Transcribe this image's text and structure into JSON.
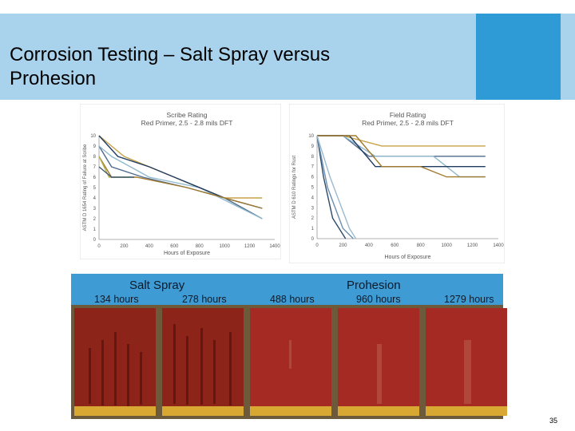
{
  "slide": {
    "title_line1": "Corrosion Testing – Salt Spray versus",
    "title_line2": "Prohesion",
    "page_number": "35",
    "colors": {
      "header_light": "#a9d2ec",
      "header_dark": "#2e9bd6",
      "strip": "#3f9bd4"
    }
  },
  "strip": {
    "salt_spray_label": "Salt Spray",
    "prohesion_label": "Prohesion",
    "hours": [
      "134 hours",
      "278 hours",
      "488 hours",
      "960 hours",
      "1279 hours"
    ]
  },
  "photos": [
    {
      "condition": "heavy-rust"
    },
    {
      "condition": "heavy-rust"
    },
    {
      "condition": "clean"
    },
    {
      "condition": "scribe"
    },
    {
      "condition": "scribe"
    }
  ],
  "chart_data": [
    {
      "type": "line",
      "title": "Scribe Rating",
      "subtitle": "Red Primer, 2.5 - 2.8 mils DFT",
      "xlabel": "Hours of Exposure",
      "ylabel": "ASTM D 1654 Rating of Failure at Scribe",
      "xlim": [
        0,
        1400
      ],
      "ylim": [
        0,
        10
      ],
      "xticks": [
        0,
        200,
        400,
        600,
        800,
        1000,
        1200,
        1400
      ],
      "yticks": [
        0,
        1,
        2,
        3,
        4,
        5,
        6,
        7,
        8,
        9,
        10
      ],
      "series": [
        {
          "color": "#c8a247",
          "points": [
            [
              0,
              10
            ],
            [
              200,
              8
            ],
            [
              600,
              6
            ],
            [
              1000,
              4
            ],
            [
              1300,
              4
            ]
          ]
        },
        {
          "color": "#4f6a8c",
          "points": [
            [
              0,
              9
            ],
            [
              100,
              7
            ],
            [
              350,
              6
            ],
            [
              700,
              5
            ],
            [
              1000,
              4
            ],
            [
              1300,
              2
            ]
          ]
        },
        {
          "color": "#8fb8cf",
          "points": [
            [
              0,
              9
            ],
            [
              100,
              8
            ],
            [
              400,
              6
            ],
            [
              800,
              5
            ],
            [
              1300,
              2
            ]
          ]
        },
        {
          "color": "#1f3b60",
          "points": [
            [
              0,
              10
            ],
            [
              150,
              8
            ],
            [
              400,
              7
            ],
            [
              600,
              6
            ],
            [
              1000,
              4
            ],
            [
              1300,
              3
            ]
          ]
        },
        {
          "color": "#a07a2e",
          "points": [
            [
              0,
              8
            ],
            [
              100,
              6
            ],
            [
              300,
              6
            ],
            [
              700,
              5
            ],
            [
              1300,
              3
            ]
          ]
        },
        {
          "color": "#b7b34a",
          "points": [
            [
              0,
              8
            ],
            [
              80,
              6
            ],
            [
              250,
              6
            ]
          ]
        },
        {
          "color": "#3e5a78",
          "points": [
            [
              0,
              7
            ],
            [
              100,
              6
            ],
            [
              280,
              6
            ]
          ]
        }
      ]
    },
    {
      "type": "line",
      "title": "Field Rating",
      "subtitle": "Red Primer, 2.5 - 2.8 mils DFT",
      "xlabel": "Hours of Exposure",
      "ylabel": "ASTM D 610 Ratings for Rust",
      "xlim": [
        0,
        1400
      ],
      "ylim": [
        0,
        10
      ],
      "xticks": [
        0,
        200,
        400,
        600,
        800,
        1000,
        1200,
        1400
      ],
      "yticks": [
        0,
        1,
        2,
        3,
        4,
        5,
        6,
        7,
        8,
        9,
        10
      ],
      "series": [
        {
          "color": "#c8a247",
          "points": [
            [
              0,
              10
            ],
            [
              200,
              10
            ],
            [
              500,
              9
            ],
            [
              1300,
              9
            ]
          ]
        },
        {
          "color": "#4f6a8c",
          "points": [
            [
              0,
              10
            ],
            [
              200,
              10
            ],
            [
              400,
              8
            ],
            [
              1300,
              8
            ]
          ]
        },
        {
          "color": "#8fb8cf",
          "points": [
            [
              0,
              10
            ],
            [
              200,
              10
            ],
            [
              450,
              8
            ],
            [
              900,
              8
            ],
            [
              1100,
              6
            ],
            [
              1300,
              6
            ]
          ]
        },
        {
          "color": "#1f3b60",
          "points": [
            [
              0,
              10
            ],
            [
              250,
              10
            ],
            [
              450,
              7
            ],
            [
              1000,
              7
            ],
            [
              1300,
              7
            ]
          ]
        },
        {
          "color": "#a07a2e",
          "points": [
            [
              0,
              10
            ],
            [
              300,
              10
            ],
            [
              500,
              7
            ],
            [
              800,
              7
            ],
            [
              1000,
              6
            ],
            [
              1300,
              6
            ]
          ]
        },
        {
          "color": "#2a4a6a",
          "points": [
            [
              0,
              10
            ],
            [
              50,
              6
            ],
            [
              120,
              2
            ],
            [
              220,
              0
            ]
          ]
        },
        {
          "color": "#6d8fb0",
          "points": [
            [
              0,
              10
            ],
            [
              80,
              5
            ],
            [
              200,
              1
            ],
            [
              280,
              0
            ]
          ]
        },
        {
          "color": "#9bbad0",
          "points": [
            [
              0,
              10
            ],
            [
              100,
              6
            ],
            [
              250,
              1
            ],
            [
              300,
              0
            ]
          ]
        }
      ]
    }
  ]
}
